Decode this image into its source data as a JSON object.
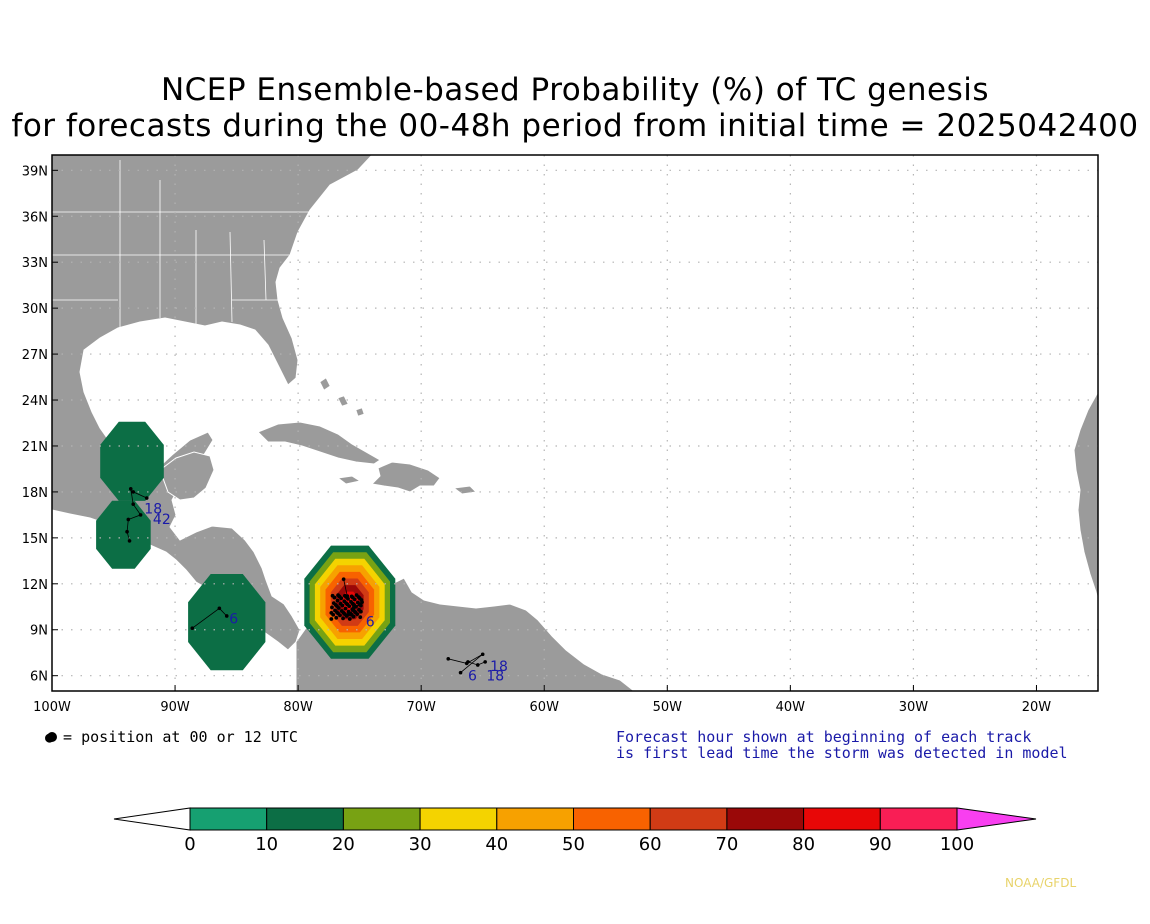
{
  "title": {
    "line1": "NCEP Ensemble-based Probability (%) of TC genesis",
    "line2": "for forecasts during the 00-48h period from initial time = 2025042400"
  },
  "map": {
    "lon_range": [
      -100,
      -15
    ],
    "lat_range": [
      5,
      40
    ],
    "lat_labels": [
      "39N",
      "36N",
      "33N",
      "30N",
      "27N",
      "24N",
      "21N",
      "18N",
      "15N",
      "12N",
      "9N",
      "6N"
    ],
    "lat_values": [
      39,
      36,
      33,
      30,
      27,
      24,
      21,
      18,
      15,
      12,
      9,
      6
    ],
    "lon_labels": [
      "100W",
      "90W",
      "80W",
      "70W",
      "60W",
      "50W",
      "40W",
      "30W",
      "20W"
    ],
    "lon_values": [
      -100,
      -90,
      -80,
      -70,
      -60,
      -50,
      -40,
      -30,
      -20
    ],
    "colors": {
      "land": "#9b9b9b",
      "border": "#ffffff",
      "grid": "#b4b4b4",
      "track": "#000000",
      "track_label": "#1a1aa8"
    }
  },
  "probability_areas": [
    {
      "name": "bay-of-campeche",
      "level": 10,
      "center": [
        -93.5,
        20.0
      ],
      "radius_deg": 2.8
    },
    {
      "name": "gulf-of-tehuantepec",
      "level": 10,
      "center": [
        -94.2,
        15.2
      ],
      "radius_deg": 2.4
    },
    {
      "name": "pacific-central-america",
      "level": 10,
      "center": [
        -85.8,
        9.5
      ],
      "radius_deg": 3.4
    },
    {
      "name": "colombia-caribbean",
      "level": 80,
      "center": [
        -75.8,
        10.8
      ],
      "radius_deg": 4.0
    }
  ],
  "track_labels": [
    {
      "text": "18",
      "lon": -92.5,
      "lat": 16.6
    },
    {
      "text": "42",
      "lon": -91.8,
      "lat": 15.9
    },
    {
      "text": "6",
      "lon": -85.6,
      "lat": 9.4
    },
    {
      "text": "6",
      "lon": -74.5,
      "lat": 9.2
    },
    {
      "text": "6",
      "lon": -66.2,
      "lat": 5.7
    },
    {
      "text": "18",
      "lon": -64.7,
      "lat": 5.7
    },
    {
      "text": "18",
      "lon": -64.4,
      "lat": 6.3
    }
  ],
  "legend_note": "● = position at 00 or 12 UTC",
  "forecast_note": {
    "line1": "Forecast hour shown at beginning of each track",
    "line2": "is first lead time the storm was detected in model"
  },
  "colorbar": {
    "colors": [
      "#ffffff",
      "#16a071",
      "#0c6e45",
      "#78a213",
      "#f4d300",
      "#f7a100",
      "#f86200",
      "#d13b15",
      "#9a0808",
      "#e80707",
      "#f91e55",
      "#f83ff0"
    ],
    "labels": [
      "0",
      "10",
      "20",
      "30",
      "40",
      "50",
      "60",
      "70",
      "80",
      "90",
      "100"
    ]
  },
  "credit": "NOAA/GFDL"
}
